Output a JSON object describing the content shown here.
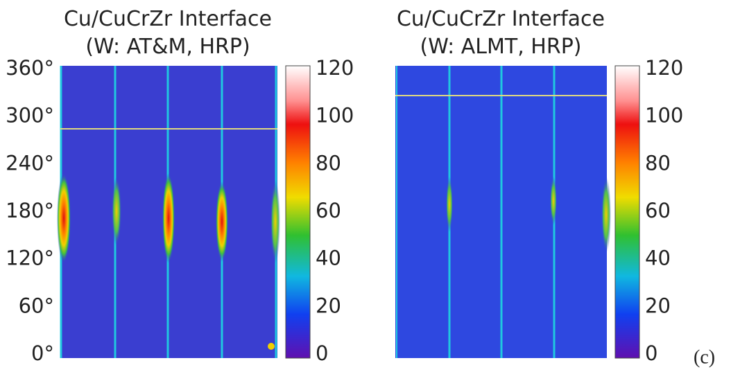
{
  "panels": [
    {
      "title_lines": [
        "Cu/CuCrZr Interface",
        "(W: AT&M, HRP)"
      ],
      "y_ticks": [
        "360°",
        "300°",
        "240°",
        "180°",
        "120°",
        "60°",
        "0°"
      ],
      "colorbar_ticks": [
        "120",
        "100",
        "80",
        "60",
        "40",
        "20",
        "0"
      ]
    },
    {
      "title_lines": [
        "Cu/CuCrZr Interface",
        "(W: ALMT, HRP)"
      ],
      "colorbar_ticks": [
        "120",
        "100",
        "80",
        "60",
        "40",
        "20",
        "0"
      ]
    }
  ],
  "label": "(c)"
}
